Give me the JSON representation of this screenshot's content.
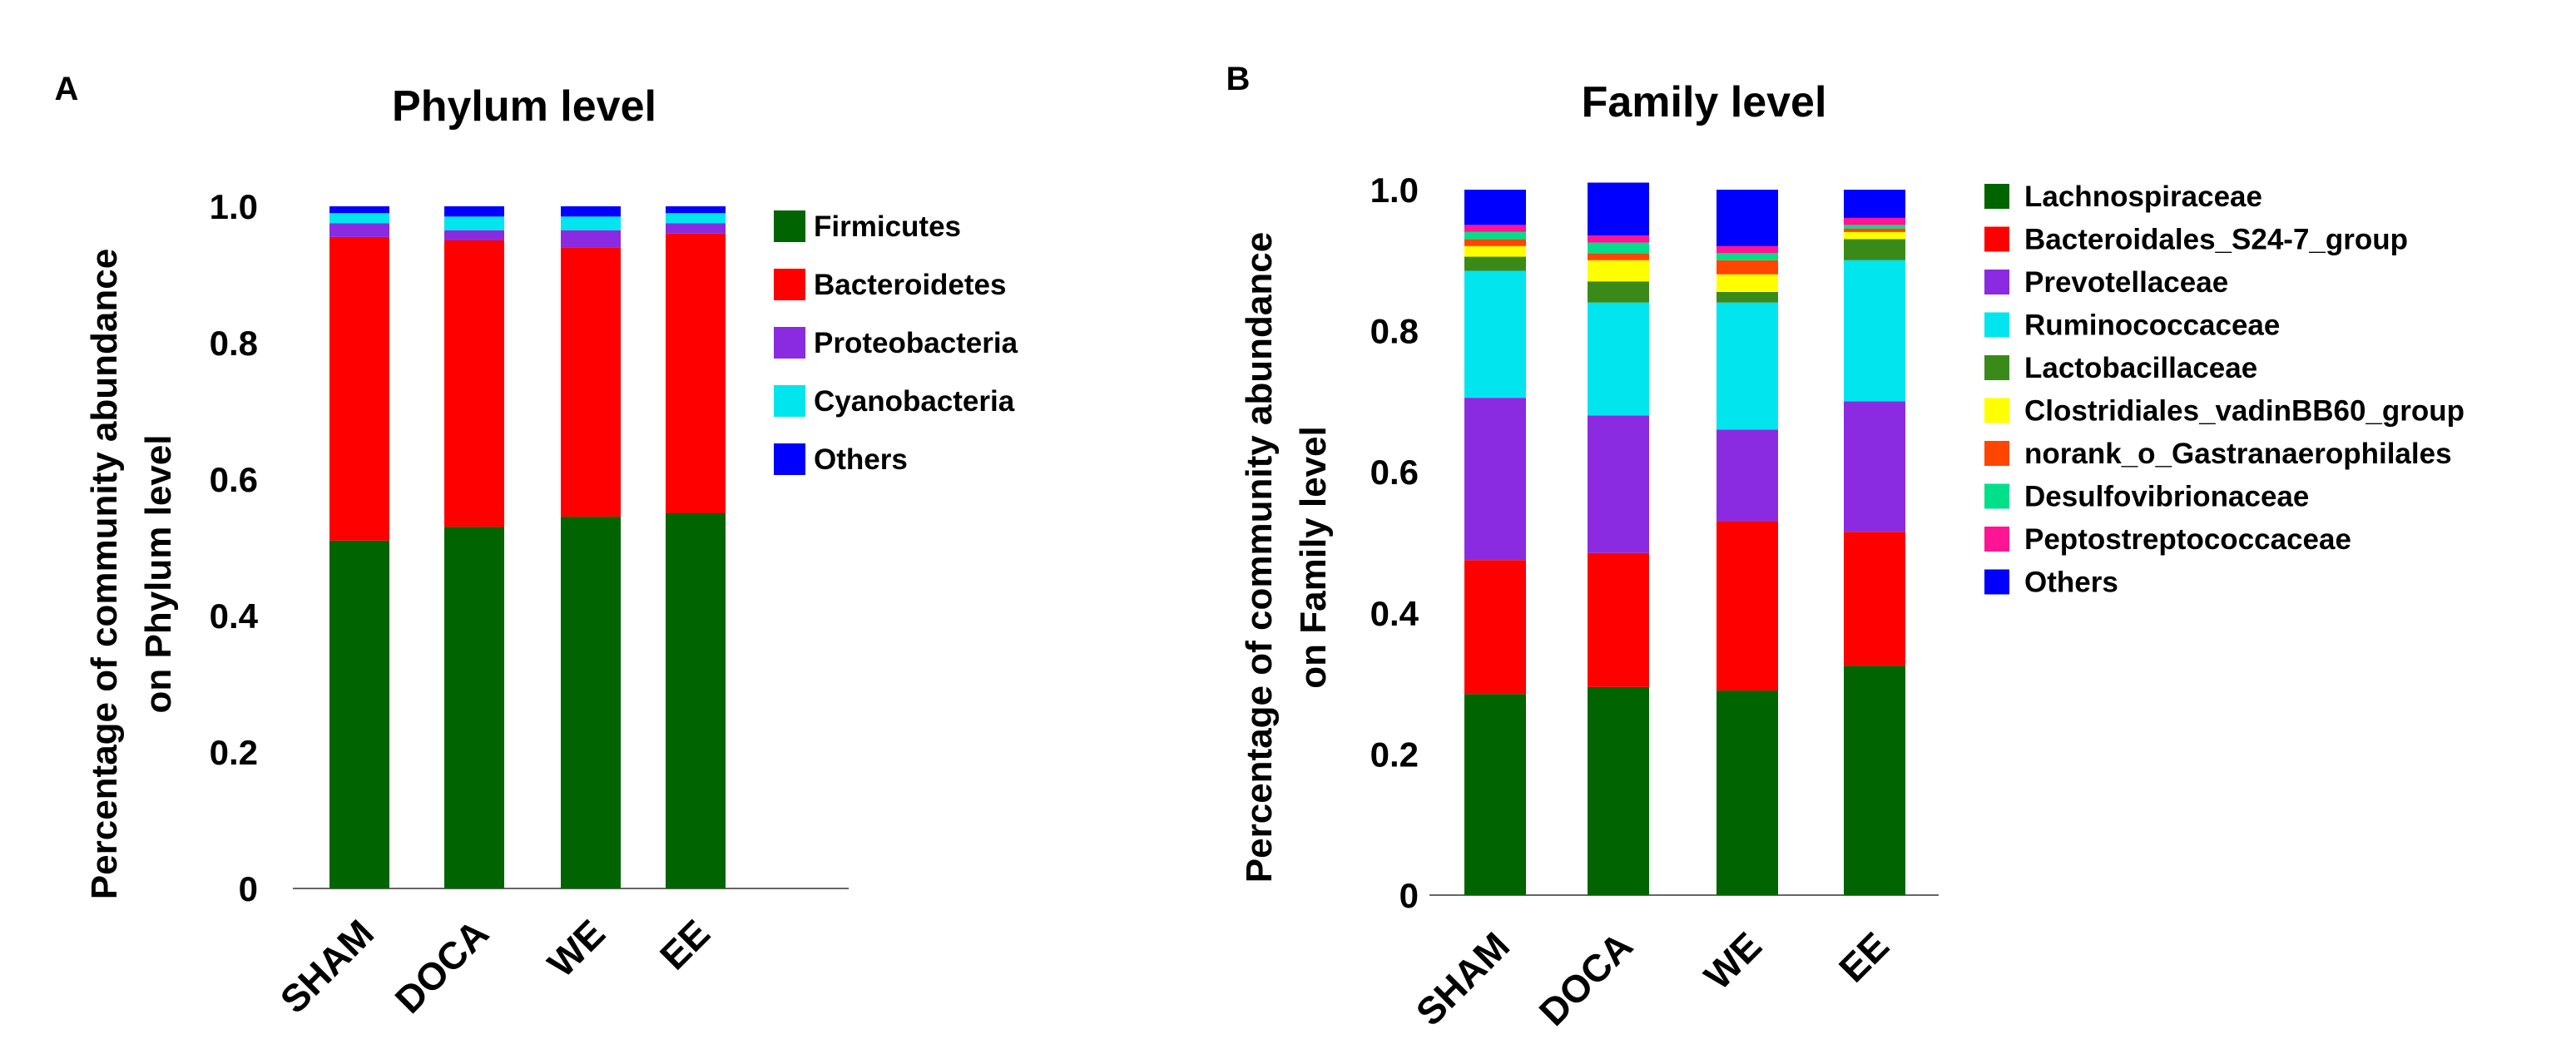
{
  "chart_data": [
    {
      "type": "bar",
      "stacked": true,
      "panel_label": "A",
      "title": "Phylum level",
      "ylabel": [
        "Percentage of community abundance",
        "on Phylum level"
      ],
      "xlabel": "",
      "categories": [
        "SHAM",
        "DOCA",
        "WE",
        "EE"
      ],
      "ylim": [
        0,
        1.0
      ],
      "yticks": [
        0,
        0.2,
        0.4,
        0.6,
        0.8,
        1.0
      ],
      "ytick_labels": [
        "0",
        "0.2",
        "0.4",
        "0.6",
        "0.8",
        "1.0"
      ],
      "legend_position": "right",
      "series": [
        {
          "name": "Firmicutes",
          "color": "#006400",
          "values": [
            0.51,
            0.53,
            0.545,
            0.55
          ]
        },
        {
          "name": "Bacteroidetes",
          "color": "#ff0000",
          "values": [
            0.445,
            0.42,
            0.395,
            0.41
          ]
        },
        {
          "name": "Proteobacteria",
          "color": "#8a2be2",
          "values": [
            0.02,
            0.015,
            0.025,
            0.015
          ]
        },
        {
          "name": "Cyanobacteria",
          "color": "#00e5ee",
          "values": [
            0.015,
            0.02,
            0.02,
            0.015
          ]
        },
        {
          "name": "Others",
          "color": "#0000ff",
          "values": [
            0.01,
            0.015,
            0.015,
            0.01
          ]
        }
      ]
    },
    {
      "type": "bar",
      "stacked": true,
      "panel_label": "B",
      "title": "Family level",
      "ylabel": [
        "Percentage of community abundance",
        "on Family level"
      ],
      "xlabel": "",
      "categories": [
        "SHAM",
        "DOCA",
        "WE",
        "EE"
      ],
      "ylim": [
        0,
        1.0
      ],
      "yticks": [
        0,
        0.2,
        0.4,
        0.6,
        0.8,
        1.0
      ],
      "ytick_labels": [
        "0",
        "0.2",
        "0.4",
        "0.6",
        "0.8",
        "1.0"
      ],
      "legend_position": "right",
      "series": [
        {
          "name": "Lachnospiraceae",
          "color": "#006400",
          "values": [
            0.285,
            0.295,
            0.29,
            0.325
          ]
        },
        {
          "name": "Bacteroidales_S24-7_group",
          "color": "#ff0000",
          "values": [
            0.19,
            0.19,
            0.24,
            0.19
          ]
        },
        {
          "name": "Prevotellaceae",
          "color": "#8a2be2",
          "values": [
            0.23,
            0.195,
            0.13,
            0.185
          ]
        },
        {
          "name": "Ruminococcaceae",
          "color": "#00e5ee",
          "values": [
            0.18,
            0.16,
            0.18,
            0.2
          ]
        },
        {
          "name": "Lactobacillaceae",
          "color": "#3a8a1a",
          "values": [
            0.02,
            0.03,
            0.015,
            0.03
          ]
        },
        {
          "name": "Clostridiales_vadinBB60_group",
          "color": "#ffff00",
          "values": [
            0.015,
            0.03,
            0.025,
            0.01
          ]
        },
        {
          "name": "norank_o_Gastranaerophilales",
          "color": "#ff4500",
          "values": [
            0.01,
            0.01,
            0.02,
            0.005
          ]
        },
        {
          "name": "Desulfovibrionaceae",
          "color": "#00e08a",
          "values": [
            0.01,
            0.015,
            0.01,
            0.005
          ]
        },
        {
          "name": "Peptostreptococcaceae",
          "color": "#ff1493",
          "values": [
            0.01,
            0.01,
            0.01,
            0.01
          ]
        },
        {
          "name": "Others",
          "color": "#0000ff",
          "values": [
            0.05,
            0.075,
            0.08,
            0.04
          ]
        }
      ]
    }
  ]
}
